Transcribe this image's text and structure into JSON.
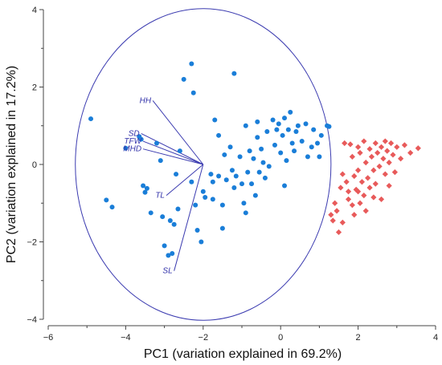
{
  "chart_data": {
    "type": "scatter",
    "title": "",
    "xlabel": "PC1 (variation explained in 69.2%)",
    "ylabel": "PC2 (variation explained in 17.2%)",
    "xlim": [
      -6,
      4
    ],
    "ylim": [
      -4,
      4
    ],
    "xticks": [
      "−6",
      "−4",
      "−2",
      "0",
      "2",
      "4"
    ],
    "yticks": [
      "−4",
      "−2",
      "0",
      "2",
      "4"
    ],
    "grid": false,
    "colors": {
      "series_a": "#1a7ed8",
      "series_b": "#e85a5a",
      "vectors": "#3b3bb0",
      "axes": "#444444"
    },
    "circle": {
      "center": [
        -2,
        0
      ],
      "radius": 3.3
    },
    "vectors": [
      {
        "label": "HH",
        "x": -3.3,
        "y": 1.65
      },
      {
        "label": "SD",
        "x": -3.6,
        "y": 0.8
      },
      {
        "label": "TFW",
        "x": -3.55,
        "y": 0.6
      },
      {
        "label": "MHD",
        "x": -3.55,
        "y": 0.4
      },
      {
        "label": "TL",
        "x": -2.95,
        "y": -0.8
      },
      {
        "label": "SL",
        "x": -2.75,
        "y": -2.75
      }
    ],
    "series": [
      {
        "marker": "circle",
        "points": [
          [
            -4.9,
            1.18
          ],
          [
            -4.5,
            -0.92
          ],
          [
            -4.35,
            -1.1
          ],
          [
            -4.0,
            0.42
          ],
          [
            -3.65,
            0.72
          ],
          [
            -3.6,
            0.65
          ],
          [
            -3.55,
            -0.55
          ],
          [
            -3.5,
            -0.72
          ],
          [
            -3.45,
            -0.62
          ],
          [
            -3.35,
            -1.25
          ],
          [
            -3.05,
            -1.35
          ],
          [
            -3.0,
            -2.1
          ],
          [
            -2.85,
            -1.45
          ],
          [
            -2.75,
            -1.55
          ],
          [
            -2.9,
            -2.35
          ],
          [
            -2.8,
            -2.3
          ],
          [
            -2.65,
            -1.15
          ],
          [
            -2.6,
            0.35
          ],
          [
            -2.5,
            2.2
          ],
          [
            -2.3,
            2.6
          ],
          [
            -2.25,
            1.85
          ],
          [
            -2.2,
            -1.05
          ],
          [
            -2.15,
            -1.7
          ],
          [
            -2.05,
            -2.0
          ],
          [
            -2.0,
            -0.7
          ],
          [
            -1.95,
            -0.85
          ],
          [
            -1.8,
            -0.25
          ],
          [
            -1.75,
            -0.45
          ],
          [
            -1.75,
            -0.9
          ],
          [
            -1.7,
            1.15
          ],
          [
            -1.6,
            0.75
          ],
          [
            -1.6,
            -0.3
          ],
          [
            -1.5,
            -1.05
          ],
          [
            -1.5,
            -1.65
          ],
          [
            -1.45,
            0.25
          ],
          [
            -1.4,
            -0.4
          ],
          [
            -1.3,
            0.45
          ],
          [
            -1.25,
            -0.15
          ],
          [
            -1.2,
            -0.6
          ],
          [
            -1.15,
            -0.3
          ],
          [
            -1.05,
            0.2
          ],
          [
            -1.0,
            -0.5
          ],
          [
            -0.95,
            -1.0
          ],
          [
            -0.9,
            1.0
          ],
          [
            -0.9,
            -1.25
          ],
          [
            -0.85,
            -0.2
          ],
          [
            -0.8,
            0.35
          ],
          [
            -0.75,
            -0.5
          ],
          [
            -0.7,
            0.15
          ],
          [
            -0.65,
            -0.8
          ],
          [
            -0.6,
            0.7
          ],
          [
            -0.55,
            -0.2
          ],
          [
            -0.5,
            0.4
          ],
          [
            -0.45,
            0.05
          ],
          [
            -0.4,
            -0.35
          ],
          [
            -0.35,
            0.85
          ],
          [
            -0.3,
            -0.05
          ],
          [
            -0.2,
            1.15
          ],
          [
            -0.15,
            0.5
          ],
          [
            -0.1,
            0.9
          ],
          [
            -0.05,
            1.05
          ],
          [
            0.0,
            0.3
          ],
          [
            0.05,
            0.75
          ],
          [
            0.1,
            1.2
          ],
          [
            0.1,
            -0.55
          ],
          [
            0.15,
            0.1
          ],
          [
            0.2,
            0.9
          ],
          [
            0.25,
            1.35
          ],
          [
            0.3,
            0.55
          ],
          [
            0.35,
            0.35
          ],
          [
            0.4,
            0.85
          ],
          [
            0.45,
            1.0
          ],
          [
            0.55,
            0.6
          ],
          [
            0.65,
            1.05
          ],
          [
            0.7,
            0.2
          ],
          [
            0.8,
            0.45
          ],
          [
            0.85,
            0.9
          ],
          [
            0.95,
            0.55
          ],
          [
            1.0,
            0.2
          ],
          [
            1.05,
            0.75
          ],
          [
            1.2,
            1.0
          ],
          [
            1.25,
            0.98
          ],
          [
            -1.2,
            2.35
          ],
          [
            -0.6,
            1.1
          ],
          [
            -3.1,
            0.1
          ],
          [
            -2.7,
            -0.25
          ],
          [
            -2.3,
            -0.45
          ],
          [
            -3.2,
            0.55
          ]
        ]
      },
      {
        "marker": "diamond",
        "points": [
          [
            1.3,
            -1.3
          ],
          [
            1.45,
            -1.2
          ],
          [
            1.6,
            -1.5
          ],
          [
            1.4,
            -1.0
          ],
          [
            1.55,
            -0.6
          ],
          [
            1.7,
            -0.45
          ],
          [
            1.75,
            -0.9
          ],
          [
            1.85,
            -1.05
          ],
          [
            1.9,
            -0.3
          ],
          [
            1.95,
            -0.65
          ],
          [
            2.0,
            -0.15
          ],
          [
            2.05,
            -1.0
          ],
          [
            2.1,
            -0.45
          ],
          [
            2.15,
            -0.8
          ],
          [
            2.2,
            0.05
          ],
          [
            2.25,
            -0.35
          ],
          [
            2.3,
            -0.6
          ],
          [
            2.35,
            0.2
          ],
          [
            2.4,
            -0.15
          ],
          [
            2.45,
            -0.5
          ],
          [
            2.5,
            0.3
          ],
          [
            2.55,
            -0.05
          ],
          [
            2.6,
            0.45
          ],
          [
            2.65,
            0.15
          ],
          [
            2.7,
            -0.25
          ],
          [
            2.75,
            0.35
          ],
          [
            2.8,
            0.05
          ],
          [
            2.85,
            0.55
          ],
          [
            2.9,
            0.25
          ],
          [
            2.95,
            -0.2
          ],
          [
            3.0,
            0.45
          ],
          [
            3.1,
            0.15
          ],
          [
            3.2,
            0.5
          ],
          [
            3.35,
            0.3
          ],
          [
            3.55,
            0.42
          ],
          [
            1.65,
            0.55
          ],
          [
            1.8,
            0.52
          ],
          [
            2.0,
            0.45
          ],
          [
            2.15,
            0.6
          ],
          [
            2.45,
            0.55
          ],
          [
            2.7,
            0.6
          ],
          [
            1.85,
            0.2
          ],
          [
            2.05,
            0.3
          ],
          [
            2.3,
            0.4
          ],
          [
            1.6,
            -0.25
          ],
          [
            1.75,
            -0.7
          ],
          [
            2.2,
            -1.2
          ],
          [
            1.5,
            -1.75
          ],
          [
            2.0,
            -0.7
          ],
          [
            2.6,
            -0.9
          ],
          [
            1.9,
            -1.3
          ],
          [
            2.4,
            -0.85
          ],
          [
            2.8,
            -0.55
          ],
          [
            1.35,
            -1.45
          ]
        ]
      }
    ]
  }
}
